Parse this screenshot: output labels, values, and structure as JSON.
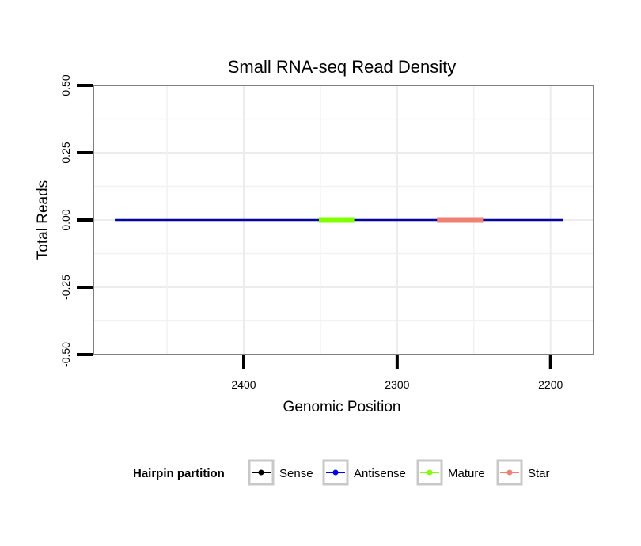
{
  "chart_data": {
    "type": "line",
    "title": "Small RNA-seq Read Density",
    "xlabel": "Genomic Position",
    "ylabel": "Total Reads",
    "x_reversed": true,
    "xlim": [
      2498,
      2172
    ],
    "ylim": [
      -0.5,
      0.5
    ],
    "x_ticks": [
      {
        "value": 2400,
        "label": "2400"
      },
      {
        "value": 2300,
        "label": "2300"
      },
      {
        "value": 2200,
        "label": "2200"
      }
    ],
    "y_ticks": [
      {
        "value": -0.5,
        "label": "-0.50"
      },
      {
        "value": -0.25,
        "label": "-0.25"
      },
      {
        "value": 0,
        "label": "0.00"
      },
      {
        "value": 0.25,
        "label": "0.25"
      },
      {
        "value": 0.5,
        "label": "0.50"
      }
    ],
    "grid": true,
    "legend_position": "bottom",
    "legend_title": "Hairpin partition",
    "series": [
      {
        "name": "Sense",
        "color": "#000000",
        "segment": [
          2484,
          2192
        ],
        "y": 0
      },
      {
        "name": "Antisense",
        "color": "#0000ff",
        "segment": [
          2484,
          2192
        ],
        "y": 0
      },
      {
        "name": "Mature",
        "color": "#80ff00",
        "segment": [
          2351,
          2328
        ],
        "y": 0
      },
      {
        "name": "Star",
        "color": "#f08070",
        "segment": [
          2274,
          2244
        ],
        "y": 0
      }
    ]
  }
}
